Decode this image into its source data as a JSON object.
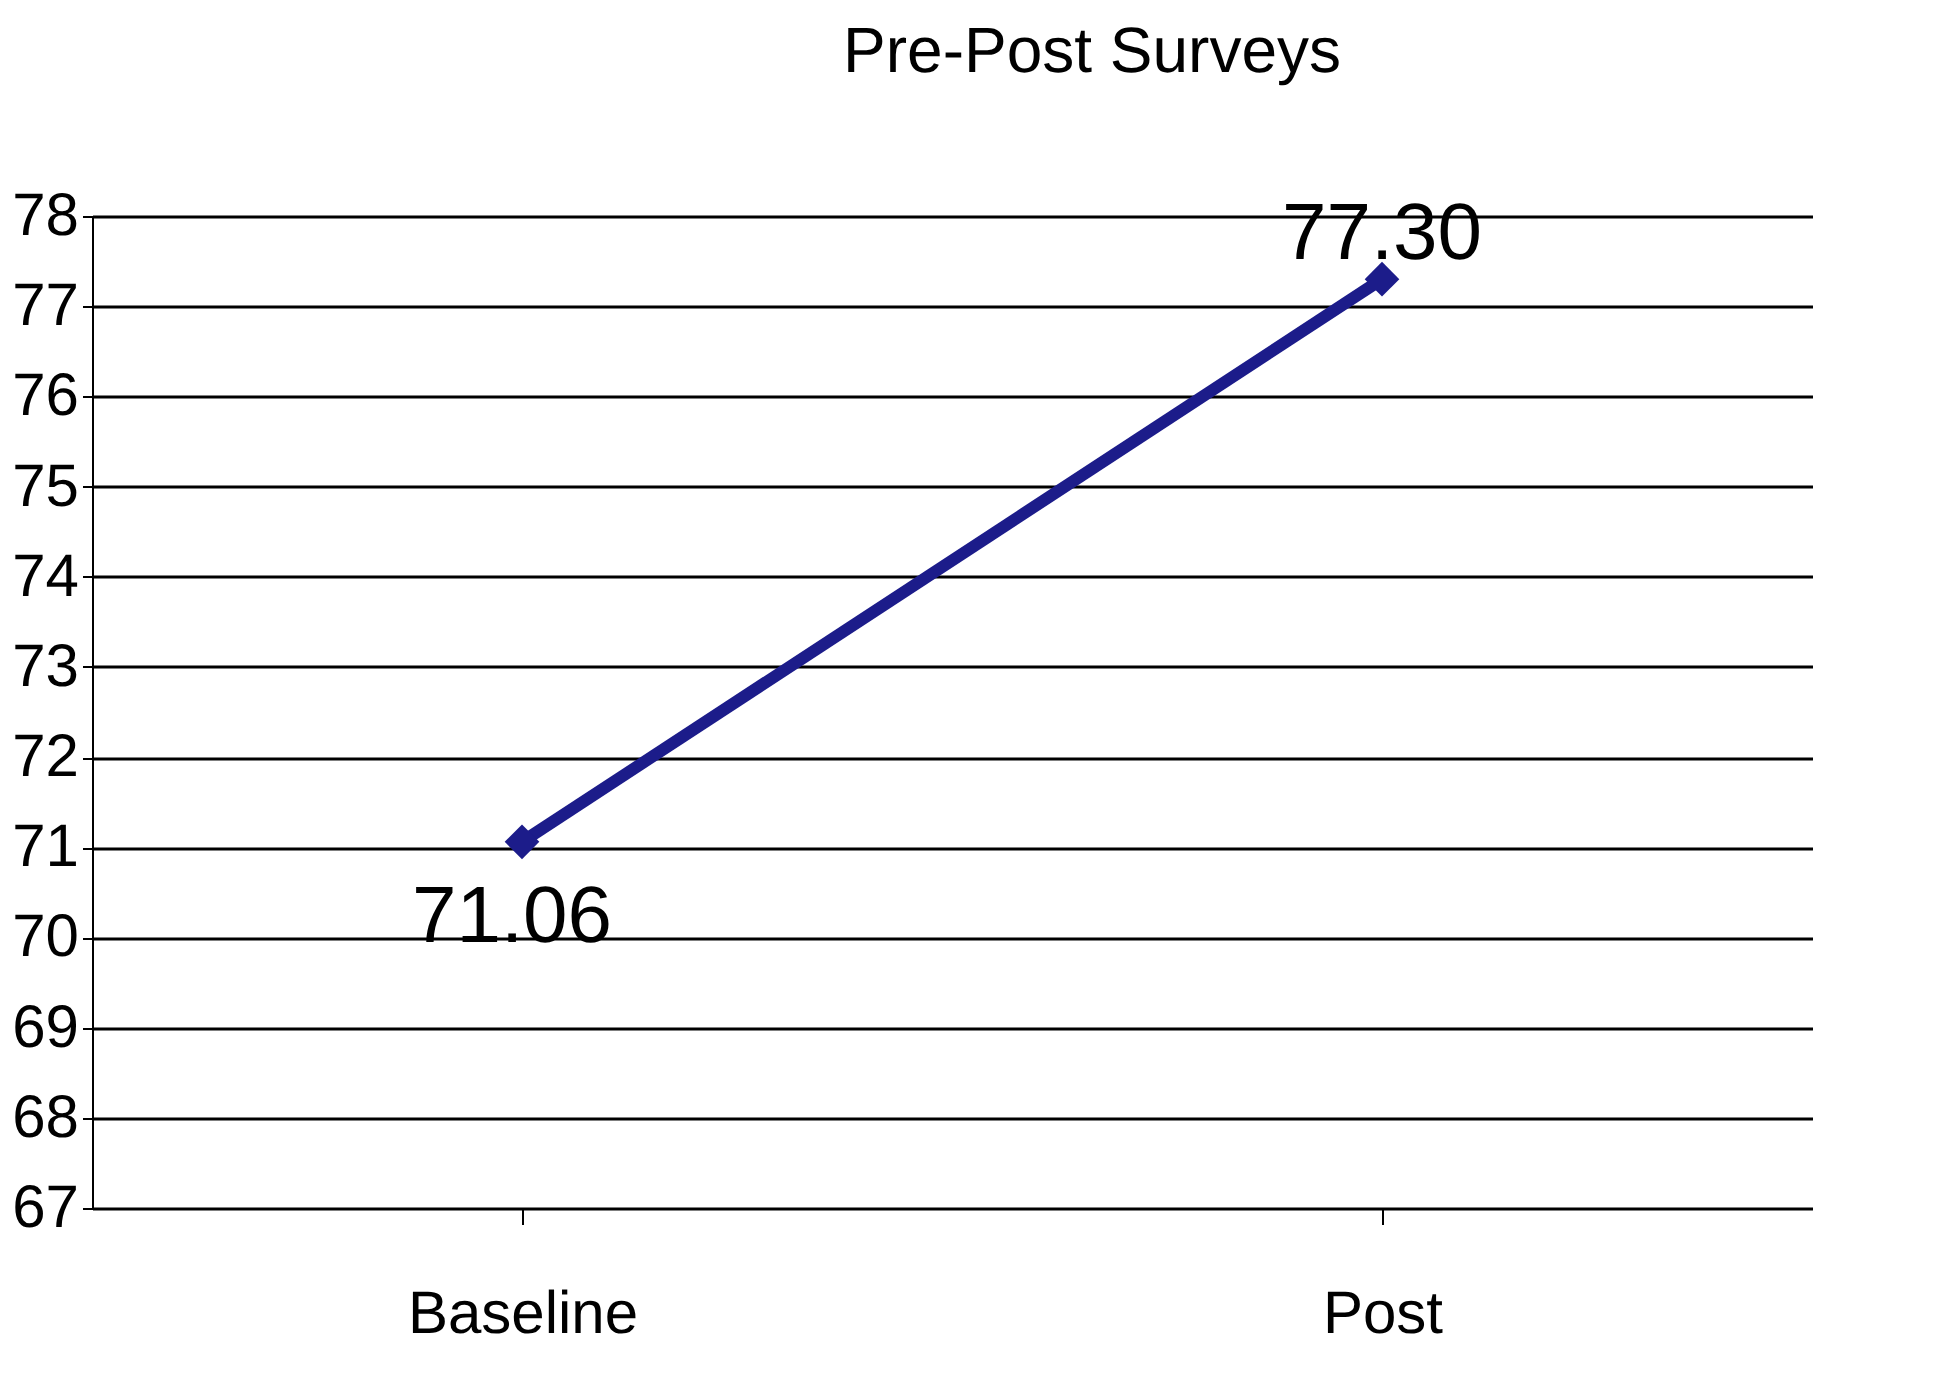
{
  "chart_data": {
    "type": "line",
    "title": "Pre-Post Surveys",
    "categories": [
      "Baseline",
      "Post"
    ],
    "series": [
      {
        "color": "#1c1c8a",
        "values": [
          71.06,
          77.3
        ],
        "value_labels": [
          "71.06",
          "77.30"
        ]
      }
    ],
    "ylim": [
      67,
      78
    ],
    "yticks": [
      67,
      68,
      69,
      70,
      71,
      72,
      73,
      74,
      75,
      76,
      77,
      78
    ],
    "grid": "y",
    "marker": "diamond",
    "line_style": "solid"
  }
}
